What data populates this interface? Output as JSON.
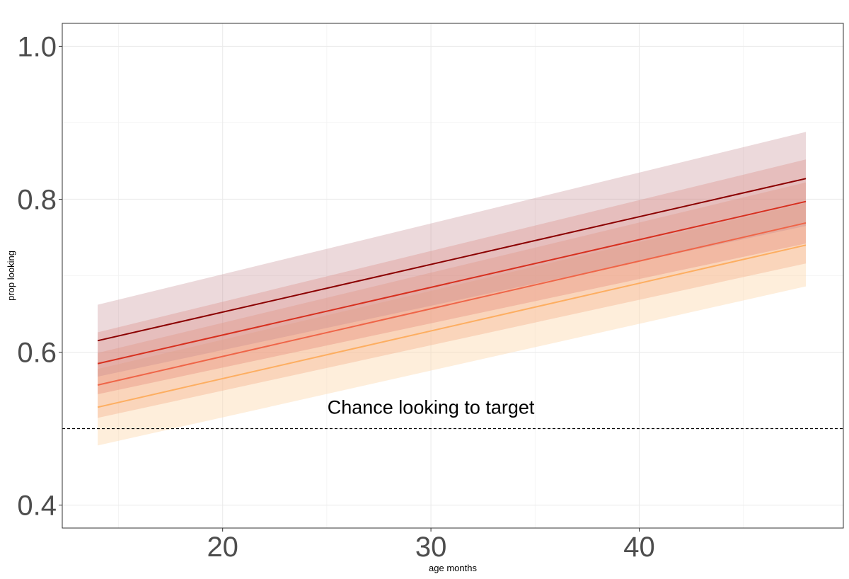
{
  "chart_data": {
    "type": "line",
    "xlabel": "age months",
    "ylabel": "prop looking",
    "xlim": [
      12.3,
      49.8
    ],
    "ylim": [
      0.37,
      1.03
    ],
    "x_ticks": [
      20,
      30,
      40
    ],
    "x_tick_labels": [
      "20",
      "30",
      "40"
    ],
    "y_ticks": [
      0.4,
      0.6,
      0.8,
      1.0
    ],
    "y_tick_labels": [
      "0.4",
      "0.6",
      "0.8",
      "1.0"
    ],
    "grid": true,
    "x": [
      14,
      48
    ],
    "series": [
      {
        "color": "#8b0000",
        "band_color": "#c58a8e",
        "band_opacity": 0.32,
        "values": [
          0.615,
          0.827
        ],
        "lower": [
          0.568,
          0.765
        ],
        "upper": [
          0.662,
          0.888
        ]
      },
      {
        "color": "#d7301f",
        "band_color": "#e07a6c",
        "band_opacity": 0.3,
        "values": [
          0.585,
          0.797
        ],
        "lower": [
          0.545,
          0.742
        ],
        "upper": [
          0.626,
          0.852
        ]
      },
      {
        "color": "#ef6548",
        "band_color": "#f4a582",
        "band_opacity": 0.35,
        "values": [
          0.557,
          0.769
        ],
        "lower": [
          0.514,
          0.716
        ],
        "upper": [
          0.599,
          0.822
        ]
      },
      {
        "color": "#fdae61",
        "band_color": "#fdd9b0",
        "band_opacity": 0.45,
        "values": [
          0.528,
          0.74
        ],
        "lower": [
          0.478,
          0.686
        ],
        "upper": [
          0.578,
          0.795
        ]
      }
    ],
    "reference_line": {
      "y": 0.5,
      "style": "dashed"
    },
    "annotations": [
      {
        "text": "Chance looking to target",
        "x": 30,
        "y": 0.528
      }
    ]
  }
}
